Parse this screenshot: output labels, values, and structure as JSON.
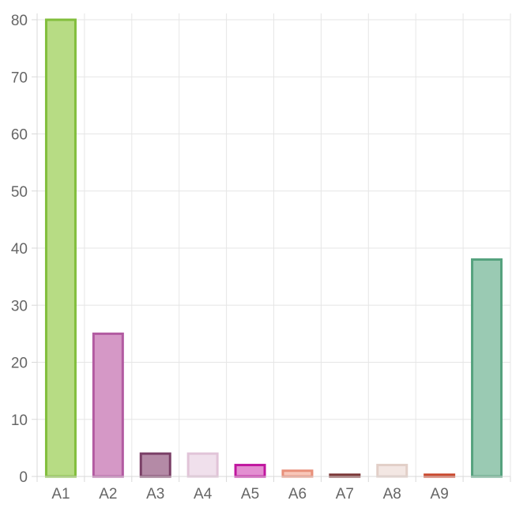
{
  "chart_data": {
    "type": "bar",
    "title": "",
    "xlabel": "",
    "ylabel": "",
    "categories": [
      "A1",
      "A2",
      "A3",
      "A4",
      "A5",
      "A6",
      "A7",
      "A8",
      "A9",
      ""
    ],
    "values": [
      80,
      25,
      4,
      4,
      2,
      1,
      0.3,
      2,
      0.3,
      38
    ],
    "ylim": [
      0,
      80
    ],
    "yticks": [
      0,
      10,
      20,
      30,
      40,
      50,
      60,
      70,
      80
    ],
    "grid": true,
    "legend": "none",
    "colors": [
      {
        "fill": "#b7dc84",
        "stroke": "#82be3c"
      },
      {
        "fill": "#d598c6",
        "stroke": "#b25ba1"
      },
      {
        "fill": "#b48aa6",
        "stroke": "#7a3f66"
      },
      {
        "fill": "#f0e0ec",
        "stroke": "#e1c4d8"
      },
      {
        "fill": "#e38fd1",
        "stroke": "#c0179f"
      },
      {
        "fill": "#f8c7b9",
        "stroke": "#e8907a"
      },
      {
        "fill": "#a86363",
        "stroke": "#7a3535"
      },
      {
        "fill": "#f3e7e3",
        "stroke": "#e2cfc8"
      },
      {
        "fill": "#e6856a",
        "stroke": "#c9472d"
      },
      {
        "fill": "#9acab3",
        "stroke": "#55a27e"
      }
    ]
  }
}
